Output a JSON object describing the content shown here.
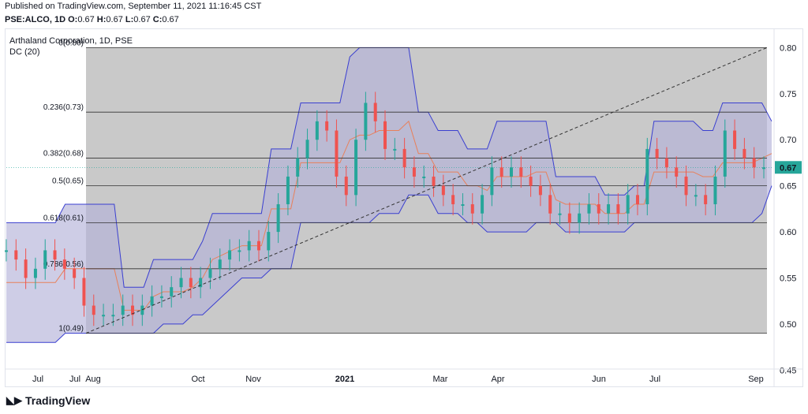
{
  "header": {
    "published": "Published on TradingView.com, September 11, 2021 11:16:45 CST",
    "symbol_exchange": "PSE:ALCO, 1D",
    "ohlc_labels": [
      "O:",
      "H:",
      "L:",
      "C:"
    ],
    "ohlc_values": [
      "0.67",
      "0.67",
      "0.67",
      "0.67"
    ]
  },
  "legend": {
    "title": "Arthaland Corporation, 1D, PSE",
    "indicator": "DC (20)"
  },
  "brand": {
    "name": "TradingView",
    "icon": "tradingview-logo-icon"
  },
  "colors": {
    "background_zone": "#c9c9c9",
    "channel_fill": "#b4b2d8",
    "channel_line": "#3a3fd0",
    "basis_line": "#e8805a",
    "up": "#26a69a",
    "down": "#ef5350",
    "price_badge": "#26a69a"
  },
  "chart_data": {
    "type": "candlestick",
    "y_ticks": [
      "0.80",
      "0.75",
      "0.70",
      "0.65",
      "0.60",
      "0.55",
      "0.50",
      "0.45"
    ],
    "y_tick_values": [
      0.8,
      0.75,
      0.7,
      0.65,
      0.6,
      0.55,
      0.5,
      0.45
    ],
    "ylim": [
      0.45,
      0.82
    ],
    "x_ticks": [
      "Jul",
      "Jul",
      "Aug",
      "Oct",
      "Nov",
      "2021",
      "Mar",
      "Apr",
      "Jun",
      "Jul",
      "Sep"
    ],
    "current_price": "0.67",
    "fib_levels": [
      {
        "label": "0(0.80)",
        "value": 0.8
      },
      {
        "label": "0.236(0.73)",
        "value": 0.73
      },
      {
        "label": "0.382(0.68)",
        "value": 0.68
      },
      {
        "label": "0.5(0.65)",
        "value": 0.65
      },
      {
        "label": "0.618(0.61)",
        "value": 0.61
      },
      {
        "label": "0.786(0.56)",
        "value": 0.56
      },
      {
        "label": "1(0.49)",
        "value": 0.49
      }
    ],
    "trend_line": {
      "from": 0.49,
      "to": 0.8
    },
    "donchian_upper": [
      0.61,
      0.61,
      0.61,
      0.61,
      0.61,
      0.61,
      0.63,
      0.63,
      0.63,
      0.63,
      0.63,
      0.63,
      0.54,
      0.54,
      0.54,
      0.57,
      0.57,
      0.57,
      0.57,
      0.57,
      0.59,
      0.62,
      0.62,
      0.62,
      0.62,
      0.62,
      0.62,
      0.69,
      0.69,
      0.69,
      0.74,
      0.74,
      0.74,
      0.74,
      0.74,
      0.79,
      0.8,
      0.8,
      0.8,
      0.8,
      0.8,
      0.8,
      0.73,
      0.73,
      0.71,
      0.71,
      0.71,
      0.69,
      0.69,
      0.69,
      0.72,
      0.72,
      0.72,
      0.72,
      0.72,
      0.72,
      0.66,
      0.66,
      0.66,
      0.66,
      0.66,
      0.64,
      0.64,
      0.64,
      0.65,
      0.65,
      0.72,
      0.72,
      0.72,
      0.72,
      0.72,
      0.71,
      0.71,
      0.74,
      0.74,
      0.74,
      0.74,
      0.74,
      0.72
    ],
    "donchian_lower": [
      0.48,
      0.48,
      0.48,
      0.48,
      0.48,
      0.48,
      0.49,
      0.49,
      0.49,
      0.49,
      0.49,
      0.49,
      0.49,
      0.49,
      0.49,
      0.49,
      0.5,
      0.5,
      0.5,
      0.51,
      0.51,
      0.52,
      0.53,
      0.54,
      0.55,
      0.55,
      0.55,
      0.56,
      0.56,
      0.56,
      0.61,
      0.61,
      0.61,
      0.61,
      0.61,
      0.61,
      0.61,
      0.61,
      0.62,
      0.62,
      0.62,
      0.64,
      0.64,
      0.64,
      0.62,
      0.62,
      0.62,
      0.61,
      0.61,
      0.6,
      0.6,
      0.6,
      0.6,
      0.6,
      0.61,
      0.61,
      0.61,
      0.6,
      0.6,
      0.6,
      0.6,
      0.6,
      0.6,
      0.6,
      0.61,
      0.61,
      0.61,
      0.61,
      0.61,
      0.61,
      0.61,
      0.61,
      0.61,
      0.61,
      0.61,
      0.61,
      0.61,
      0.62,
      0.65
    ],
    "closes": [
      0.58,
      0.57,
      0.55,
      0.56,
      0.58,
      0.57,
      0.56,
      0.55,
      0.52,
      0.51,
      0.51,
      0.51,
      0.52,
      0.51,
      0.52,
      0.53,
      0.53,
      0.54,
      0.55,
      0.54,
      0.55,
      0.56,
      0.57,
      0.58,
      0.58,
      0.59,
      0.58,
      0.6,
      0.63,
      0.66,
      0.68,
      0.7,
      0.72,
      0.71,
      0.66,
      0.64,
      0.7,
      0.74,
      0.72,
      0.69,
      0.69,
      0.67,
      0.66,
      0.66,
      0.65,
      0.64,
      0.63,
      0.63,
      0.62,
      0.64,
      0.67,
      0.66,
      0.67,
      0.66,
      0.65,
      0.64,
      0.62,
      0.62,
      0.61,
      0.62,
      0.63,
      0.62,
      0.63,
      0.62,
      0.64,
      0.63,
      0.69,
      0.68,
      0.67,
      0.66,
      0.64,
      0.64,
      0.63,
      0.66,
      0.71,
      0.69,
      0.68,
      0.67,
      0.67
    ]
  }
}
